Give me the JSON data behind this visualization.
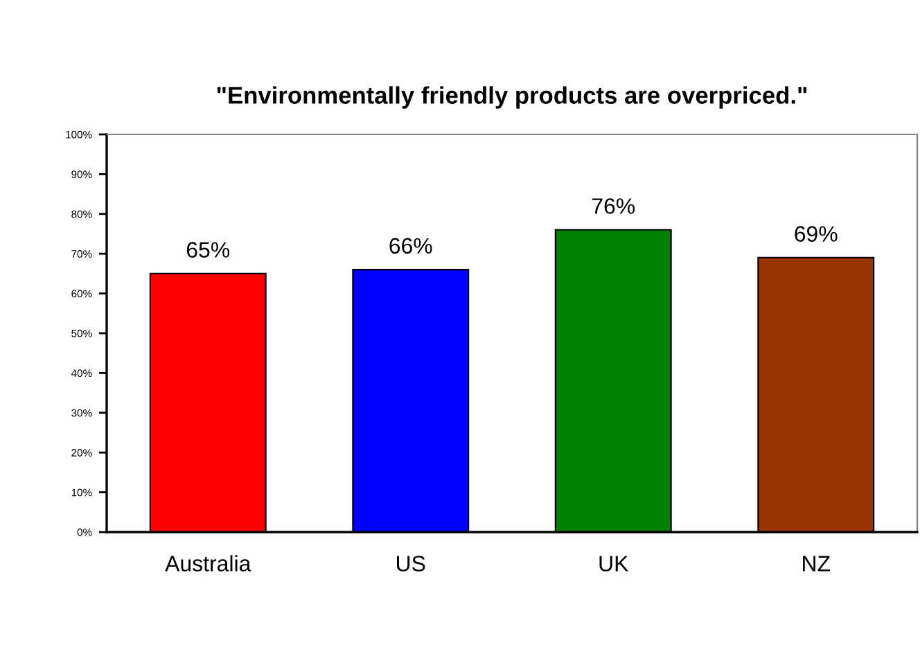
{
  "chart_data": {
    "type": "bar",
    "title": "\"Environmentally friendly products are overpriced.\"",
    "categories": [
      "Australia",
      "US",
      "UK",
      "NZ"
    ],
    "values": [
      65,
      66,
      76,
      69
    ],
    "colors": [
      "#ff0000",
      "#0000ff",
      "#008000",
      "#993300"
    ],
    "value_labels": [
      "65%",
      "66%",
      "76%",
      "69%"
    ],
    "ylim": [
      0,
      100
    ],
    "yticks": [
      {
        "value": 0,
        "label": "0%"
      },
      {
        "value": 10,
        "label": "10%"
      },
      {
        "value": 20,
        "label": "20%"
      },
      {
        "value": 30,
        "label": "30%"
      },
      {
        "value": 40,
        "label": "40%"
      },
      {
        "value": 50,
        "label": "50%"
      },
      {
        "value": 60,
        "label": "60%"
      },
      {
        "value": 70,
        "label": "70%"
      },
      {
        "value": 80,
        "label": "80%"
      },
      {
        "value": 90,
        "label": "90%"
      },
      {
        "value": 100,
        "label": "100%"
      }
    ]
  }
}
